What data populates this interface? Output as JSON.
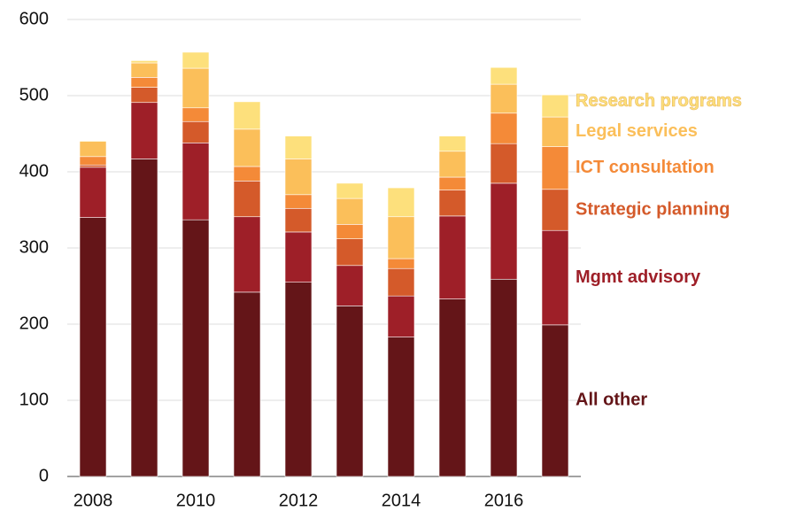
{
  "chart_data": {
    "type": "stacked_bar",
    "categories": [
      "2008",
      null,
      "2010",
      null,
      "2012",
      null,
      "2014",
      null,
      "2016",
      null
    ],
    "series": [
      {
        "name": "All other",
        "color": "#641518",
        "values": [
          340,
          417,
          337,
          242,
          255,
          224,
          183,
          233,
          259,
          199
        ]
      },
      {
        "name": "Mgmt advisory",
        "color": "#9e1f28",
        "values": [
          66,
          74,
          101,
          99,
          66,
          53,
          54,
          109,
          126,
          124
        ]
      },
      {
        "name": "Strategic planning",
        "color": "#d45a2a",
        "values": [
          3,
          20,
          28,
          47,
          31,
          35,
          36,
          34,
          52,
          54
        ]
      },
      {
        "name": "ICT consultation",
        "color": "#f48a38",
        "values": [
          11,
          13,
          18,
          19,
          18,
          19,
          13,
          17,
          40,
          56
        ]
      },
      {
        "name": "Legal services",
        "color": "#fbbf5a",
        "values": [
          20,
          19,
          52,
          49,
          47,
          34,
          55,
          34,
          38,
          39
        ]
      },
      {
        "name": "Research programs",
        "color": "#fde07c",
        "values": [
          1,
          3,
          21,
          36,
          30,
          20,
          38,
          20,
          22,
          29
        ]
      }
    ],
    "ylim": [
      0,
      600
    ],
    "yticks": [
      0,
      100,
      200,
      300,
      400,
      500,
      600
    ],
    "grid": true
  }
}
